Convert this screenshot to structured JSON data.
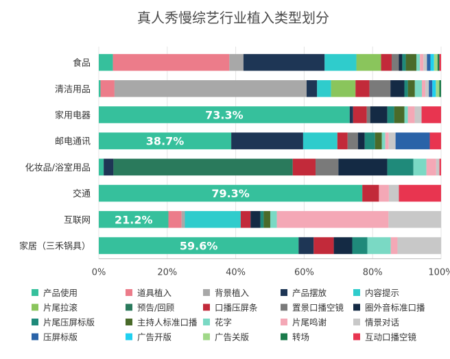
{
  "chart_data": {
    "type": "bar",
    "orientation": "horizontal",
    "stacked": true,
    "normalized": true,
    "title": "真人秀慢综艺行业植入类型划分",
    "xlim": [
      0,
      100
    ],
    "x_ticks": [
      "0%",
      "20%",
      "40%",
      "60%",
      "80%",
      "100%"
    ],
    "categories": [
      "食品",
      "清洁用品",
      "家用电器",
      "邮电通讯",
      "化妆品/浴室用品",
      "交通",
      "互联网",
      "家居（三禾锅具）"
    ],
    "bar_labels": [
      "",
      "",
      "73.3%",
      "38.7%",
      "",
      "79.3%",
      "21.2%",
      "59.6%"
    ],
    "legend_columns": 5,
    "series": [
      {
        "name": "产品使用",
        "color": "#36c09c",
        "values": [
          4,
          0.5,
          73.3,
          38.7,
          1.5,
          79.3,
          21.2,
          59.6
        ]
      },
      {
        "name": "道具植入",
        "color": "#ec7c8a",
        "values": [
          33,
          4,
          0,
          0,
          0,
          0,
          4,
          0
        ]
      },
      {
        "name": "背景植入",
        "color": "#a8a8a8",
        "values": [
          4,
          55,
          0,
          0,
          0,
          0,
          1,
          0
        ]
      },
      {
        "name": "产品摆放",
        "color": "#1e3655",
        "values": [
          23,
          3,
          1,
          21,
          3,
          0,
          0,
          4.5
        ]
      },
      {
        "name": "内容提示",
        "color": "#2fcccc",
        "values": [
          9,
          4,
          0,
          10,
          0,
          0,
          17,
          0
        ]
      },
      {
        "name": "片尾拉滚",
        "color": "#8ac55c",
        "values": [
          7,
          7,
          0,
          0,
          0,
          0,
          0,
          0
        ]
      },
      {
        "name": "预告/回顾",
        "color": "#2a7a5c",
        "values": [
          0,
          0,
          0,
          0,
          55,
          0,
          0,
          0
        ]
      },
      {
        "name": "口播压屏条",
        "color": "#c22a3a",
        "values": [
          3,
          4,
          4,
          3,
          7,
          5,
          3,
          6
        ]
      },
      {
        "name": "置景口播空镜",
        "color": "#7a7a7a",
        "values": [
          2,
          6,
          1,
          3,
          7,
          0,
          0,
          0
        ]
      },
      {
        "name": "圈外音标准口播",
        "color": "#142a44",
        "values": [
          1,
          4,
          5,
          2,
          15,
          0,
          3,
          5.5
        ]
      },
      {
        "name": "片尾压屏标版",
        "color": "#1f8a7a",
        "values": [
          1,
          1,
          2,
          3,
          8,
          0,
          1,
          4.5
        ]
      },
      {
        "name": "主持人标准口播",
        "color": "#4a6a2a",
        "values": [
          3,
          2,
          3,
          2,
          0,
          0,
          2,
          0
        ]
      },
      {
        "name": "花字",
        "color": "#7ad9c4",
        "values": [
          1,
          2,
          1,
          1,
          4,
          0,
          2,
          7
        ]
      },
      {
        "name": "片尾鸣谢",
        "color": "#f4a8b6",
        "values": [
          1,
          1,
          2,
          1,
          3,
          3,
          34,
          2
        ]
      },
      {
        "name": "情景对话",
        "color": "#c8c8c8",
        "values": [
          1,
          1,
          2,
          2,
          1,
          3,
          16,
          13
        ]
      },
      {
        "name": "压屏标版",
        "color": "#2a63a8",
        "values": [
          1,
          1,
          0,
          10,
          0,
          0,
          0,
          0
        ]
      },
      {
        "name": "广告开版",
        "color": "#20d0f0",
        "values": [
          1,
          1,
          0,
          0,
          0,
          0,
          0,
          0
        ]
      },
      {
        "name": "广告关版",
        "color": "#a0d888",
        "values": [
          1,
          1,
          0,
          0,
          0,
          0,
          0,
          0
        ]
      },
      {
        "name": "转场",
        "color": "#1a7a4a",
        "values": [
          0.5,
          0.5,
          0,
          0,
          0,
          0,
          0,
          0
        ]
      },
      {
        "name": "互动口播空镜",
        "color": "#e83550",
        "values": [
          0.5,
          0,
          5.7,
          3.3,
          0.5,
          12.7,
          0,
          0
        ]
      }
    ]
  }
}
